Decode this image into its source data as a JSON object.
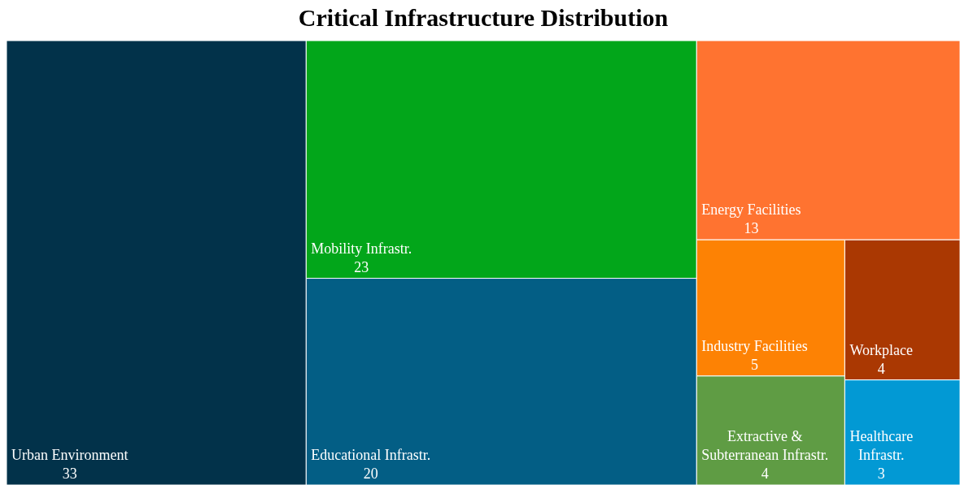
{
  "chart_data": {
    "type": "other",
    "title": "Critical Infrastructure Distribution",
    "categories": [
      "Urban Environment",
      "Mobility Infrastr.",
      "Educational Infrastr.",
      "Energy Facilities",
      "Industry Facilities",
      "Extractive & Subterranean Infrastr.",
      "Workplace",
      "Healthcare Infrastr."
    ],
    "values": [
      33,
      23,
      20,
      13,
      5,
      4,
      4,
      3
    ],
    "colors": [
      "#02324a",
      "#02a61a",
      "#035e85",
      "#ff7330",
      "#fd8204",
      "#5f9c44",
      "#aa3802",
      "#0299d4"
    ],
    "data_labels": true
  }
}
